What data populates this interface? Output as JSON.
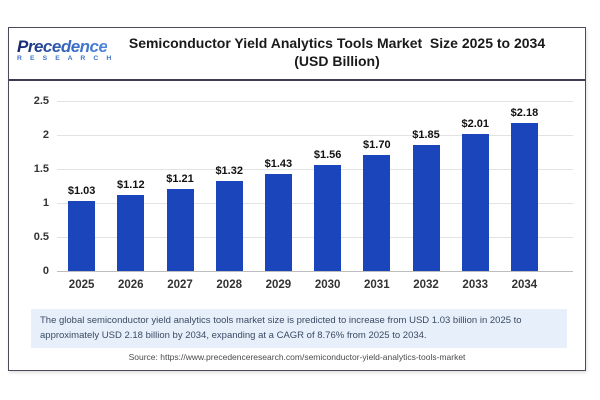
{
  "logo": {
    "name": "Precedence",
    "subtitle": "R E S E A R C H"
  },
  "header": {
    "title_line1": "Semiconductor Yield Analytics Tools Market  Size 2025 to 2034",
    "title_line2": "(USD Billion)"
  },
  "chart_data": {
    "type": "bar",
    "categories": [
      "2025",
      "2026",
      "2027",
      "2028",
      "2029",
      "2030",
      "2031",
      "2032",
      "2033",
      "2034"
    ],
    "values": [
      1.03,
      1.12,
      1.21,
      1.32,
      1.43,
      1.56,
      1.7,
      1.85,
      2.01,
      2.18
    ],
    "value_labels": [
      "$1.03",
      "$1.12",
      "$1.21",
      "$1.32",
      "$1.43",
      "$1.56",
      "$1.70",
      "$1.85",
      "$2.01",
      "$2.18"
    ],
    "title": "Semiconductor Yield Analytics Tools Market Size 2025 to 2034 (USD Billion)",
    "xlabel": "",
    "ylabel": "",
    "ylim": [
      0,
      2.5
    ],
    "yticks": [
      0,
      0.5,
      1,
      1.5,
      2,
      2.5
    ],
    "grid": true,
    "legend": "none",
    "bar_color": "#1b46bb"
  },
  "note": {
    "text": "The global semiconductor yield analytics tools market size is predicted to increase from USD 1.03 billion in 2025 to approximately USD 2.18 billion by 2034, expanding at a CAGR of 8.76% from 2025 to 2034."
  },
  "source": {
    "text": "Source: https://www.precedenceresearch.com/semiconductor-yield-analytics-tools-market"
  },
  "colors": {
    "bar": "#1b46bb",
    "note_bg": "#e7f0fa",
    "note_text": "#3a4a63",
    "frame_border": "#4a4a58",
    "logo_dark": "#16246b",
    "logo_blue": "#3f74cc"
  }
}
